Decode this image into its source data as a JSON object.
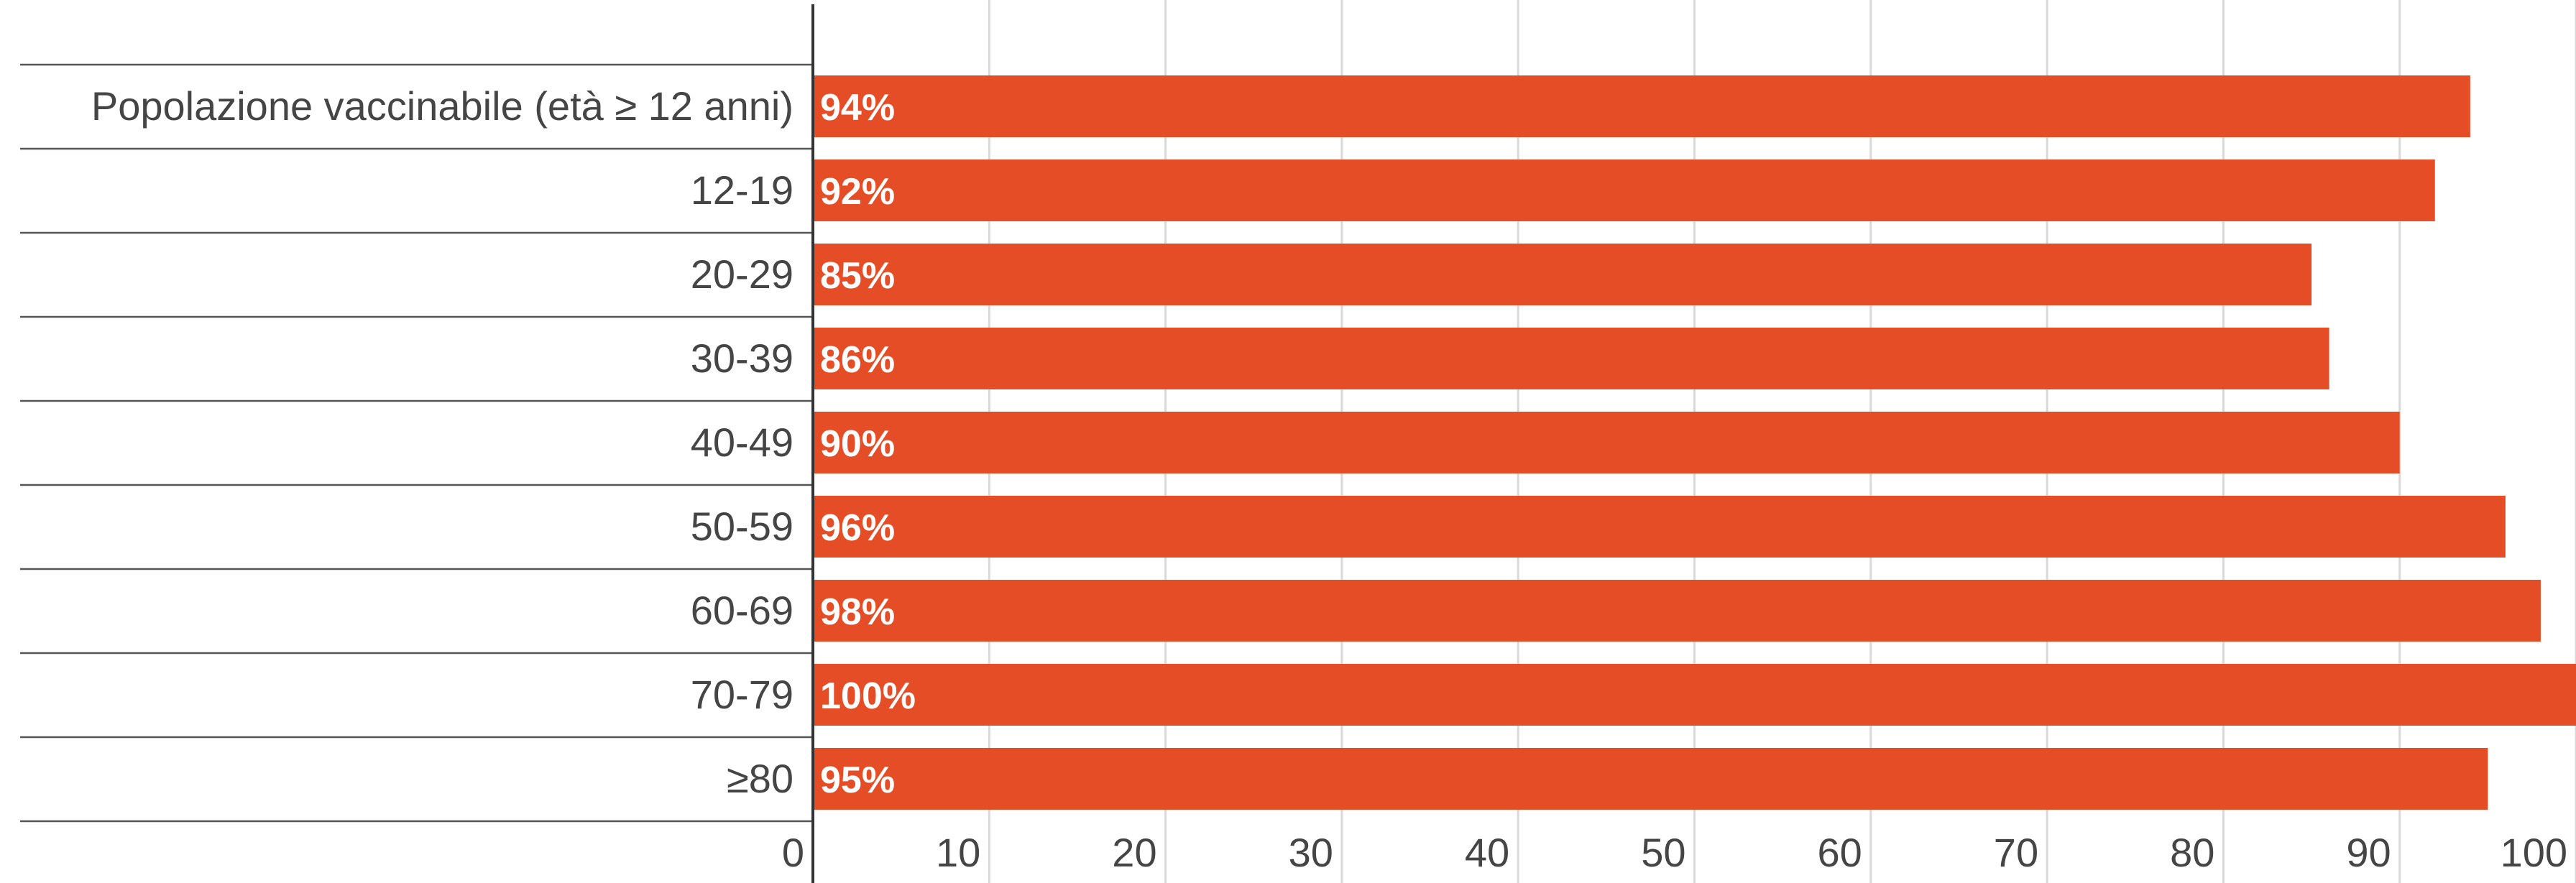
{
  "chart_data": {
    "type": "bar",
    "orientation": "horizontal",
    "title": "",
    "xlabel": "",
    "ylabel": "",
    "categories": [
      "Popolazione vaccinabile (età ≥ 12 anni)",
      "12-19",
      "20-29",
      "30-39",
      "40-49",
      "50-59",
      "60-69",
      "70-79",
      "≥80"
    ],
    "values": [
      94,
      92,
      85,
      86,
      90,
      96,
      98,
      100,
      95
    ],
    "value_labels": [
      "94%",
      "92%",
      "85%",
      "86%",
      "90%",
      "96%",
      "98%",
      "100%",
      "95%"
    ],
    "xlim": [
      0,
      100
    ],
    "x_ticks": [
      "0",
      "10",
      "20",
      "30",
      "40",
      "50",
      "60",
      "70",
      "80",
      "90",
      "100"
    ],
    "grid": true,
    "legend": "none",
    "colors": {
      "bar": "#e44d26",
      "value_text": "#ffffff",
      "axis_text": "#454545",
      "gridline": "#d9d9d9",
      "row_line": "#555555",
      "axis_line": "#333333"
    }
  }
}
